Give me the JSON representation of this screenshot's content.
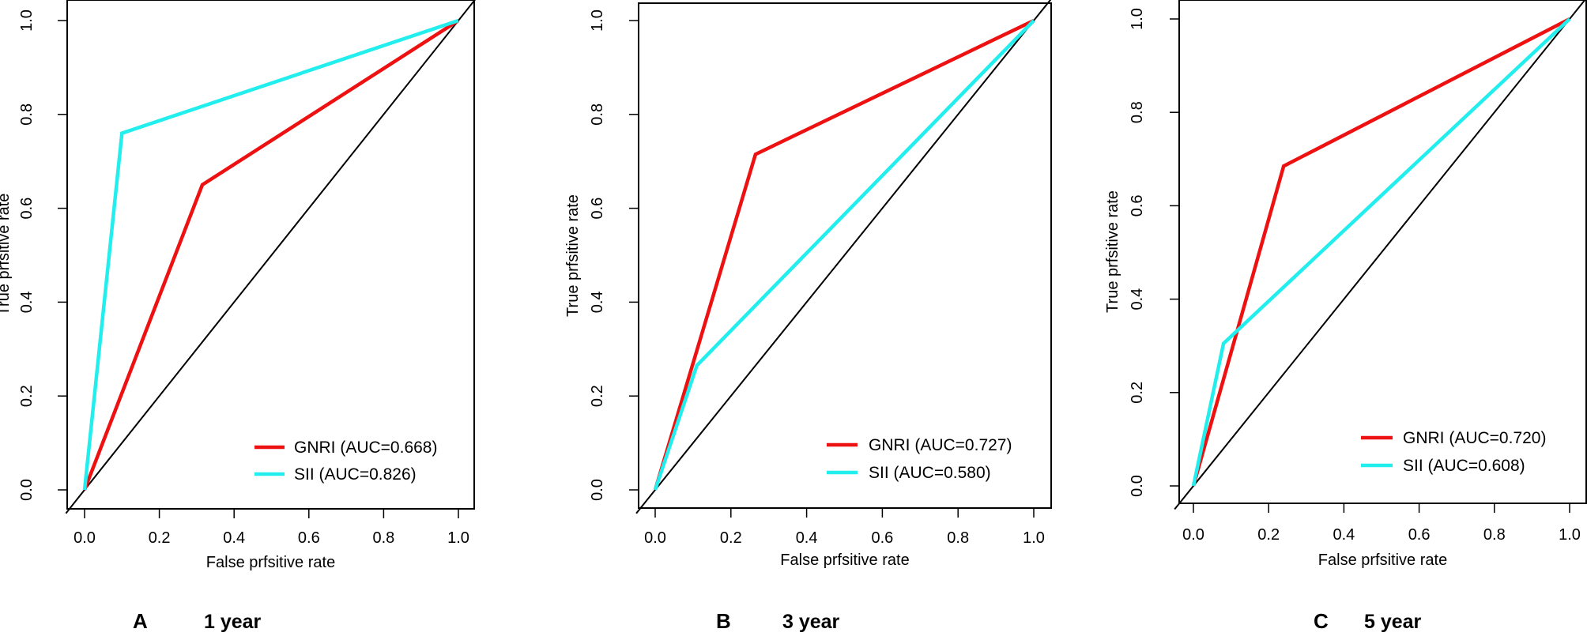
{
  "chart_data": [
    {
      "type": "line",
      "panel_letter": "A",
      "caption": "1 year",
      "xlabel": "False prfsitive rate",
      "ylabel": "True prfsitive rate",
      "xlim": [
        0,
        1
      ],
      "ylim": [
        0,
        1
      ],
      "x_ticks": [
        "0.0",
        "0.2",
        "0.4",
        "0.6",
        "0.8",
        "1.0"
      ],
      "y_ticks": [
        "0.0",
        "0.2",
        "0.4",
        "0.6",
        "0.8",
        "1.0"
      ],
      "legend_position": "bottom-right",
      "series": [
        {
          "name": "GNRI",
          "label": "GNRI (AUC=0.668)",
          "auc": 0.668,
          "color": "#ee1111",
          "x": [
            0,
            0.315,
            1
          ],
          "y": [
            0,
            0.65,
            1
          ]
        },
        {
          "name": "SII",
          "label": "SII (AUC=0.826)",
          "auc": 0.826,
          "color": "#22eeee",
          "x": [
            0,
            0.1,
            1
          ],
          "y": [
            0,
            0.76,
            1
          ]
        }
      ],
      "reference_line": {
        "x": [
          0,
          1
        ],
        "y": [
          0,
          1
        ],
        "color": "#000000"
      }
    },
    {
      "type": "line",
      "panel_letter": "B",
      "caption": "3 year",
      "xlabel": "False prfsitive rate",
      "ylabel": "True prfsitive rate",
      "xlim": [
        0,
        1
      ],
      "ylim": [
        0,
        1
      ],
      "x_ticks": [
        "0.0",
        "0.2",
        "0.4",
        "0.6",
        "0.8",
        "1.0"
      ],
      "y_ticks": [
        "0.0",
        "0.2",
        "0.4",
        "0.6",
        "0.8",
        "1.0"
      ],
      "legend_position": "bottom-right",
      "series": [
        {
          "name": "GNRI",
          "label": "GNRI (AUC=0.727)",
          "auc": 0.727,
          "color": "#ee1111",
          "x": [
            0,
            0.265,
            1
          ],
          "y": [
            0,
            0.715,
            1
          ]
        },
        {
          "name": "SII",
          "label": "SII (AUC=0.580)",
          "auc": 0.58,
          "color": "#22eeee",
          "x": [
            0,
            0.11,
            1
          ],
          "y": [
            0,
            0.265,
            1
          ]
        }
      ],
      "reference_line": {
        "x": [
          0,
          1
        ],
        "y": [
          0,
          1
        ],
        "color": "#000000"
      }
    },
    {
      "type": "line",
      "panel_letter": "C",
      "caption": "5 year",
      "xlabel": "False prfsitive rate",
      "ylabel": "True prfsitive rate",
      "xlim": [
        0,
        1
      ],
      "ylim": [
        0,
        1
      ],
      "x_ticks": [
        "0.0",
        "0.2",
        "0.4",
        "0.6",
        "0.8",
        "1.0"
      ],
      "y_ticks": [
        "0.0",
        "0.2",
        "0.4",
        "0.6",
        "0.8",
        "1.0"
      ],
      "legend_position": "bottom-right",
      "series": [
        {
          "name": "GNRI",
          "label": "GNRI (AUC=0.720)",
          "auc": 0.72,
          "color": "#ee1111",
          "x": [
            0,
            0.24,
            1
          ],
          "y": [
            0,
            0.685,
            1
          ]
        },
        {
          "name": "SII",
          "label": "SII (AUC=0.608)",
          "auc": 0.608,
          "color": "#22eeee",
          "x": [
            0,
            0.08,
            1
          ],
          "y": [
            0,
            0.305,
            1
          ]
        }
      ],
      "reference_line": {
        "x": [
          0,
          1
        ],
        "y": [
          0,
          1
        ],
        "color": "#000000"
      }
    }
  ]
}
